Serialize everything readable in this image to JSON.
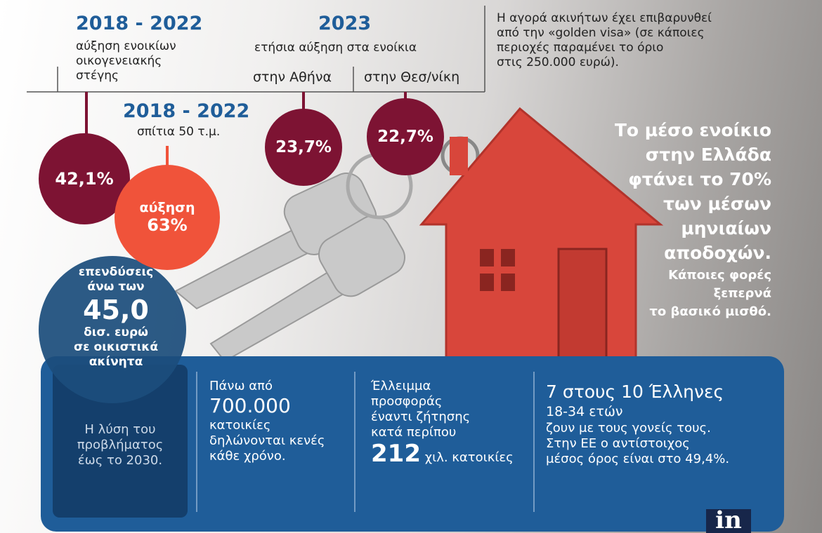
{
  "top_left": {
    "year": "2018 - 2022",
    "lines": [
      "αύξηση ενοικίων",
      "οικογενειακής",
      "στέγης"
    ]
  },
  "top_middle": {
    "year": "2023",
    "subtitle": "ετήσια αύξηση στα ενοίκια",
    "athens": "στην Αθήνα",
    "thessaloniki": "στην Θεσ/νίκη"
  },
  "top_note": {
    "lines": [
      "Η αγορά ακινήτων έχει επιβαρυνθεί",
      "από την «golden visa» (σε κάποιες",
      "περιοχές παραμένει το όριο",
      "στις 250.000 ευρώ)."
    ]
  },
  "small_homes": {
    "year": "2018 - 2022",
    "subtitle": "σπίτια  50 τ.μ."
  },
  "circles": {
    "family_rent": "42,1%",
    "small_homes": {
      "label": "αύξηση",
      "value": "63%"
    },
    "athens": "23,7%",
    "thessaloniki": "22,7%"
  },
  "investment": {
    "lines_top": [
      "επενδύσεις",
      "άνω των"
    ],
    "amount": "45,0",
    "lines_bottom": [
      "δισ. ευρώ",
      "σε οικιστικά",
      "ακίνητα"
    ]
  },
  "rent_note": {
    "main": [
      "Το μέσο ενοίκιο",
      "στην Ελλάδα",
      "φτάνει το 70%",
      "των μέσων",
      "μηνιαίων",
      "αποδοχών."
    ],
    "secondary": [
      "Κάποιες φορές",
      "ξεπερνά",
      "το βασικό μισθό."
    ]
  },
  "panel": {
    "solution": {
      "lines": [
        "Η λύση του",
        "προβλήματος",
        "έως το 2030."
      ]
    },
    "empty_homes": {
      "intro": "Πάνω από",
      "number": "700.000",
      "lines": [
        "κατοικίες",
        "δηλώνονται κενές",
        "κάθε χρόνο."
      ]
    },
    "shortage": {
      "lines": [
        "Έλλειμμα",
        "προσφοράς",
        "έναντι  ζήτησης",
        "κατά περίπου"
      ],
      "number": "212",
      "unit": "χιλ. κατοικίες"
    },
    "youth": {
      "headline": "7 στους 10 Έλληνες",
      "age": "18-34 ετών",
      "lines": [
        "ζουν με τους γονείς τους.",
        "Στην ΕΕ  ο αντίστοιχος",
        "μέσος όρος είναι στο 49,4%."
      ]
    }
  },
  "logo": "in"
}
